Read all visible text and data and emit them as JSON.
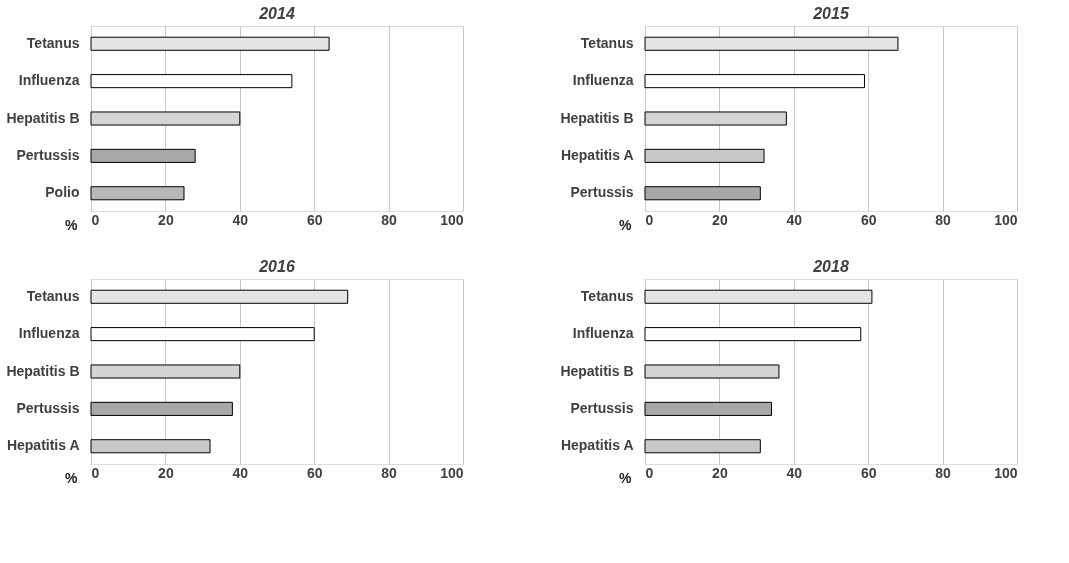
{
  "chart_data": [
    {
      "type": "bar",
      "orientation": "horizontal",
      "title": "2014",
      "xlabel": "%",
      "categories": [
        "Tetanus",
        "Influenza",
        "Hepatitis B",
        "Pertussis",
        "Polio"
      ],
      "values": [
        64,
        54,
        40,
        28,
        25
      ],
      "colors": [
        "#e4e4e4",
        "#ffffff",
        "#d4d4d4",
        "#a8a8a8",
        "#b8b8b8"
      ],
      "xlim": [
        0,
        100
      ],
      "xticks": [
        0,
        20,
        40,
        60,
        80,
        100
      ],
      "grid": "x"
    },
    {
      "type": "bar",
      "orientation": "horizontal",
      "title": "2015",
      "xlabel": "%",
      "categories": [
        "Tetanus",
        "Influenza",
        "Hepatitis B",
        "Hepatitis A",
        "Pertussis"
      ],
      "values": [
        68,
        59,
        38,
        32,
        31
      ],
      "colors": [
        "#e4e4e4",
        "#ffffff",
        "#d4d4d4",
        "#c8c8c8",
        "#a8a8a8"
      ],
      "xlim": [
        0,
        100
      ],
      "xticks": [
        0,
        20,
        40,
        60,
        80,
        100
      ],
      "grid": "x"
    },
    {
      "type": "bar",
      "orientation": "horizontal",
      "title": "2016",
      "xlabel": "%",
      "categories": [
        "Tetanus",
        "Influenza",
        "Hepatitis B",
        "Pertussis",
        "Hepatitis A"
      ],
      "values": [
        69,
        60,
        40,
        38,
        32
      ],
      "colors": [
        "#e4e4e4",
        "#ffffff",
        "#d4d4d4",
        "#a8a8a8",
        "#c8c8c8"
      ],
      "xlim": [
        0,
        100
      ],
      "xticks": [
        0,
        20,
        40,
        60,
        80,
        100
      ],
      "grid": "x"
    },
    {
      "type": "bar",
      "orientation": "horizontal",
      "title": "2018",
      "xlabel": "%",
      "categories": [
        "Tetanus",
        "Influenza",
        "Hepatitis B",
        "Pertussis",
        "Hepatitis A"
      ],
      "values": [
        61,
        58,
        36,
        34,
        31
      ],
      "colors": [
        "#e4e4e4",
        "#ffffff",
        "#d4d4d4",
        "#a8a8a8",
        "#c8c8c8"
      ],
      "xlim": [
        0,
        100
      ],
      "xticks": [
        0,
        20,
        40,
        60,
        80,
        100
      ],
      "grid": "x"
    }
  ]
}
